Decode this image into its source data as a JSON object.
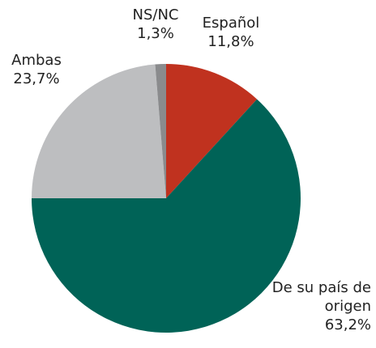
{
  "chart_data": {
    "type": "pie",
    "categories": [
      "Español",
      "De su país de origen",
      "Ambas",
      "NS/NC"
    ],
    "values": [
      11.8,
      63.2,
      23.7,
      1.3
    ],
    "value_labels": [
      "11,8%",
      "63,2%",
      "23,7%",
      "1,3%"
    ],
    "colors": [
      "#c0321f",
      "#006357",
      "#bdbec0",
      "#8a8b8d"
    ]
  }
}
